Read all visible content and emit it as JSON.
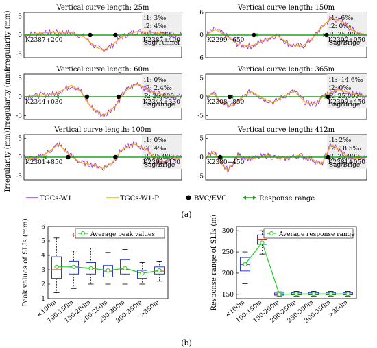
{
  "figure": {
    "label_a": "(a)",
    "label_b": "(b)",
    "colors": {
      "tgcs": "#9933ff",
      "tgcs_p": "#ffaa00",
      "bvc": "#000000",
      "range": "#1aa51a",
      "box": "#2a3cd0",
      "median": "#e02020",
      "mean": "#22cc22",
      "outlier": "#e02020"
    }
  },
  "panel_a": {
    "ylabel": "Irregularity (mm)",
    "legend": [
      "TGCs-W1",
      "TGCs-W1-P",
      "BVC/EVC",
      "Response range"
    ]
  },
  "chart_data": [
    {
      "type": "line",
      "id": "a1",
      "title": "Vertical curve length: 25m",
      "params": [
        "i1: 3‰",
        "i2: 4‰",
        "R: 25,000",
        "Sag/Tunnel"
      ],
      "start": "K2387+200",
      "end": "K2387+400",
      "ylim": [
        -6,
        6
      ],
      "yticks": [
        -5,
        0,
        5
      ],
      "bvc": [
        0.42,
        0.58
      ],
      "range": [
        0.2,
        0.8
      ],
      "fitted": [
        [
          0,
          0
        ],
        [
          0.1,
          0.5
        ],
        [
          0.2,
          0.8
        ],
        [
          0.3,
          0.7
        ],
        [
          0.38,
          -0.5
        ],
        [
          0.45,
          -3
        ],
        [
          0.5,
          -4
        ],
        [
          0.55,
          -3
        ],
        [
          0.62,
          -0.5
        ],
        [
          0.72,
          1
        ],
        [
          0.8,
          0.7
        ],
        [
          0.9,
          0.3
        ],
        [
          1,
          0
        ]
      ]
    },
    {
      "type": "line",
      "id": "a2",
      "title": "Vertical curve length: 150m",
      "params": [
        "i1: -6‰",
        "i2: 0‰",
        "R: 25,000",
        "Sag/Brige"
      ],
      "start": "K2299+650",
      "end": "K2300+050",
      "ylim": [
        -6,
        6
      ],
      "yticks": [
        -6,
        0,
        6
      ],
      "bvc": [
        0.3,
        0.75
      ],
      "range": [
        0.3,
        0.75
      ],
      "fitted": [
        [
          0,
          0
        ],
        [
          0.06,
          1.5
        ],
        [
          0.12,
          0
        ],
        [
          0.2,
          -2.5
        ],
        [
          0.28,
          -3
        ],
        [
          0.36,
          -1.5
        ],
        [
          0.44,
          0
        ],
        [
          0.52,
          -2.5
        ],
        [
          0.6,
          -3
        ],
        [
          0.66,
          -1
        ],
        [
          0.72,
          2
        ],
        [
          0.78,
          4.5
        ],
        [
          0.85,
          3.5
        ],
        [
          0.92,
          1
        ],
        [
          1,
          0
        ]
      ]
    },
    {
      "type": "line",
      "id": "a3",
      "title": "Vertical curve length: 60m",
      "params": [
        "i1: 0‰",
        "i2: 2.4‰",
        "R: 25,000",
        "Sag/Brige"
      ],
      "start": "K2344+030",
      "end": "K2344+330",
      "ylim": [
        -6,
        6
      ],
      "yticks": [
        -5,
        0,
        5
      ],
      "bvc": [
        0.4,
        0.6
      ],
      "range": [
        0.2,
        0.85
      ],
      "fitted": [
        [
          0,
          0
        ],
        [
          0.1,
          0.4
        ],
        [
          0.2,
          0.8
        ],
        [
          0.3,
          3
        ],
        [
          0.36,
          1.5
        ],
        [
          0.42,
          -2.5
        ],
        [
          0.5,
          -5
        ],
        [
          0.58,
          -2.5
        ],
        [
          0.64,
          1.5
        ],
        [
          0.72,
          3.5
        ],
        [
          0.8,
          1.5
        ],
        [
          0.9,
          0.3
        ],
        [
          1,
          0
        ]
      ]
    },
    {
      "type": "line",
      "id": "a4",
      "title": "Vertical curve length: 365m",
      "params": [
        "i1: -14.6‰",
        "i2: 0‰",
        "R: 25,000",
        "Sag/Brige"
      ],
      "start": "K2308+850",
      "end": "K2309+450",
      "ylim": [
        -6,
        6
      ],
      "yticks": [
        -5,
        0,
        5
      ],
      "bvc": [
        0.15,
        0.76
      ],
      "range": [
        0.15,
        0.76
      ],
      "fitted": [
        [
          0,
          0
        ],
        [
          0.05,
          0.8
        ],
        [
          0.1,
          -1.5
        ],
        [
          0.16,
          -2.5
        ],
        [
          0.22,
          -0.5
        ],
        [
          0.28,
          1.5
        ],
        [
          0.36,
          -0.5
        ],
        [
          0.42,
          -1.5
        ],
        [
          0.5,
          0.5
        ],
        [
          0.55,
          1.5
        ],
        [
          0.62,
          -1.5
        ],
        [
          0.68,
          -2
        ],
        [
          0.74,
          0.5
        ],
        [
          0.82,
          2
        ],
        [
          0.9,
          1
        ],
        [
          1,
          0
        ]
      ]
    },
    {
      "type": "line",
      "id": "a5",
      "title": "Vertical curve length: 100m",
      "params": [
        "i1: 0‰",
        "i2: 4‰",
        "R: 25,000",
        "Sag/Brige"
      ],
      "start": "K2301+850",
      "end": "K2302+150",
      "ylim": [
        -6,
        6
      ],
      "yticks": [
        -5,
        0,
        5
      ],
      "bvc": [
        0.28,
        0.58
      ],
      "range": [
        0.12,
        0.92
      ],
      "fitted": [
        [
          0,
          0
        ],
        [
          0.08,
          -0.5
        ],
        [
          0.16,
          1.5
        ],
        [
          0.22,
          3.5
        ],
        [
          0.28,
          1
        ],
        [
          0.36,
          -1.5
        ],
        [
          0.44,
          -2
        ],
        [
          0.5,
          -3
        ],
        [
          0.56,
          -1.5
        ],
        [
          0.62,
          2
        ],
        [
          0.7,
          3.5
        ],
        [
          0.78,
          2
        ],
        [
          0.86,
          -1.5
        ],
        [
          0.94,
          -0.5
        ],
        [
          1,
          0
        ]
      ]
    },
    {
      "type": "line",
      "id": "a6",
      "title": "Vertical curve length: 412m",
      "params": [
        "i1: 2‰",
        "i2: 18.5‰",
        "R: 25,000",
        "Sag/Brige"
      ],
      "start": "K2380+450",
      "end": "K2381+050",
      "ylim": [
        -6,
        6
      ],
      "yticks": [
        -5,
        0,
        5
      ],
      "bvc": [
        0.09,
        0.76
      ],
      "range": [
        0.09,
        0.76
      ],
      "fitted": [
        [
          0,
          0
        ],
        [
          0.05,
          1.5
        ],
        [
          0.1,
          -2
        ],
        [
          0.14,
          -3.5
        ],
        [
          0.2,
          0.5
        ],
        [
          0.28,
          -0.5
        ],
        [
          0.38,
          0.5
        ],
        [
          0.48,
          -0.5
        ],
        [
          0.58,
          0.5
        ],
        [
          0.66,
          -0.5
        ],
        [
          0.72,
          -2
        ],
        [
          0.78,
          3.5
        ],
        [
          0.84,
          1.5
        ],
        [
          0.9,
          -0.5
        ],
        [
          1,
          0
        ]
      ]
    },
    {
      "type": "box",
      "id": "b1",
      "ylabel": "Peak values of SLIs (mm)",
      "legend": "Average peak values",
      "ylim": [
        1,
        6
      ],
      "yticks": [
        1,
        2,
        3,
        4,
        5,
        6
      ],
      "categories": [
        "<100m",
        "100-150m",
        "150-200m",
        "200-250m",
        "250-300m",
        "300-350m",
        ">350m"
      ],
      "boxes": [
        {
          "min": 1.4,
          "q1": 2.4,
          "median": 3.0,
          "q3": 3.9,
          "max": 5.2,
          "mean": 3.2
        },
        {
          "min": 1.7,
          "q1": 2.7,
          "median": 3.2,
          "q3": 3.6,
          "max": 4.3,
          "mean": 3.2,
          "outliers": [
            5.4
          ]
        },
        {
          "min": 2.0,
          "q1": 2.7,
          "median": 3.1,
          "q3": 3.5,
          "max": 4.5,
          "mean": 3.1
        },
        {
          "min": 2.0,
          "q1": 2.5,
          "median": 2.9,
          "q3": 3.3,
          "max": 4.2,
          "mean": 2.95
        },
        {
          "min": 2.0,
          "q1": 2.7,
          "median": 3.0,
          "q3": 3.7,
          "max": 4.4,
          "mean": 3.1
        },
        {
          "min": 2.0,
          "q1": 2.4,
          "median": 2.8,
          "q3": 2.95,
          "max": 3.5,
          "mean": 2.75
        },
        {
          "min": 2.2,
          "q1": 2.7,
          "median": 2.9,
          "q3": 3.2,
          "max": 3.6,
          "mean": 2.95
        }
      ]
    },
    {
      "type": "box",
      "id": "b2",
      "ylabel": "Response range of SLIs (m)",
      "legend": "Average response range",
      "ylim": [
        140,
        310
      ],
      "yticks": [
        150,
        200,
        250,
        300
      ],
      "categories": [
        "<100m",
        "100-150m",
        "150-200m",
        "200-250m",
        "250-300m",
        "300-350m",
        ">350m"
      ],
      "boxes": [
        {
          "min": 175,
          "q1": 205,
          "median": 220,
          "q3": 237,
          "max": 250,
          "mean": 221
        },
        {
          "min": 245,
          "q1": 268,
          "median": 280,
          "q3": 290,
          "max": 300,
          "mean": 272
        },
        {
          "min": 145,
          "q1": 148,
          "median": 150,
          "q3": 153,
          "max": 156,
          "mean": 150
        },
        {
          "min": 146,
          "q1": 149,
          "median": 151,
          "q3": 154,
          "max": 157,
          "mean": 151
        },
        {
          "min": 146,
          "q1": 149,
          "median": 151,
          "q3": 154,
          "max": 157,
          "mean": 151
        },
        {
          "min": 146,
          "q1": 149,
          "median": 151,
          "q3": 154,
          "max": 157,
          "mean": 151
        },
        {
          "min": 146,
          "q1": 149,
          "median": 151,
          "q3": 154,
          "max": 157,
          "mean": 151
        }
      ]
    }
  ]
}
